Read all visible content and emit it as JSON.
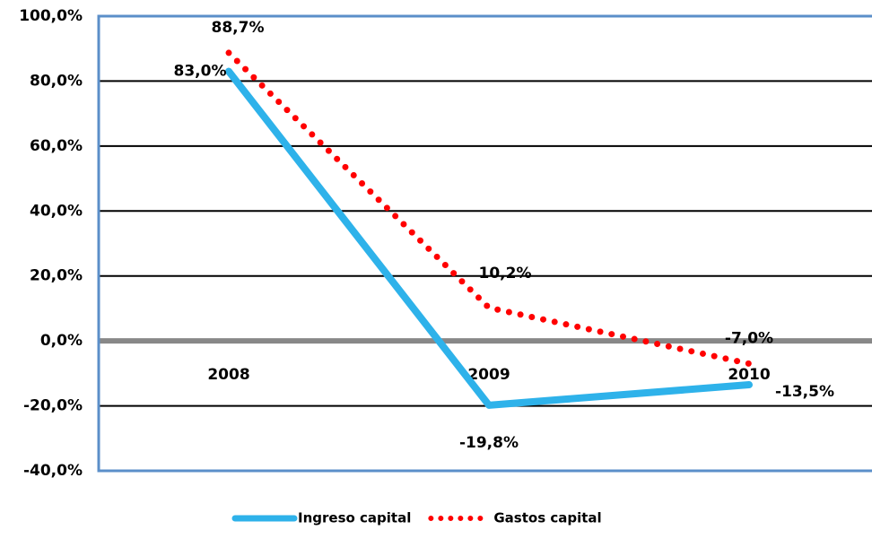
{
  "chart_data": {
    "type": "line",
    "categories": [
      "2008",
      "2009",
      "2010"
    ],
    "series": [
      {
        "name": "Ingreso capital",
        "color": "#2eb2ea",
        "dash": "solid",
        "values": [
          83.0,
          -19.8,
          -13.5
        ],
        "value_labels": [
          "83,0%",
          "-19,8%",
          "-13,5%"
        ]
      },
      {
        "name": "Gastos capital",
        "color": "#ff0000",
        "dash": "dotted",
        "values": [
          88.7,
          10.2,
          -7.0
        ],
        "value_labels": [
          "88,7%",
          "10,2%",
          "-7,0%"
        ]
      }
    ],
    "ylim": [
      -40,
      100
    ],
    "yticks": [
      {
        "value": -40,
        "label": "-40,0%"
      },
      {
        "value": -20,
        "label": "-20,0%"
      },
      {
        "value": 0,
        "label": "0,0%"
      },
      {
        "value": 20,
        "label": "20,0%"
      },
      {
        "value": 40,
        "label": "40,0%"
      },
      {
        "value": 60,
        "label": "60,0%"
      },
      {
        "value": 80,
        "label": "80,0%"
      },
      {
        "value": 100,
        "label": "100,0%"
      }
    ],
    "grid": true,
    "legend": "bottom"
  }
}
